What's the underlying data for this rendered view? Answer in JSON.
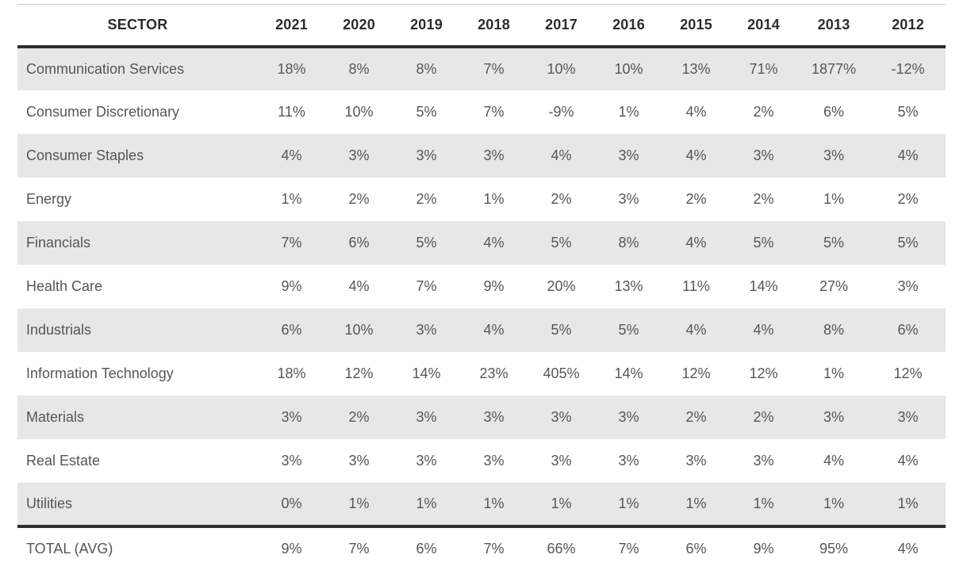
{
  "table": {
    "header": {
      "sector": "SECTOR",
      "years": [
        "2021",
        "2020",
        "2019",
        "2018",
        "2017",
        "2016",
        "2015",
        "2014",
        "2013",
        "2012"
      ]
    },
    "rows": [
      {
        "sector": "Communication Services",
        "values": [
          "18%",
          "8%",
          "8%",
          "7%",
          "10%",
          "10%",
          "13%",
          "71%",
          "1877%",
          "-12%"
        ]
      },
      {
        "sector": "Consumer Discretionary",
        "values": [
          "11%",
          "10%",
          "5%",
          "7%",
          "-9%",
          "1%",
          "4%",
          "2%",
          "6%",
          "5%"
        ]
      },
      {
        "sector": "Consumer Staples",
        "values": [
          "4%",
          "3%",
          "3%",
          "3%",
          "4%",
          "3%",
          "4%",
          "3%",
          "3%",
          "4%"
        ]
      },
      {
        "sector": "Energy",
        "values": [
          "1%",
          "2%",
          "2%",
          "1%",
          "2%",
          "3%",
          "2%",
          "2%",
          "1%",
          "2%"
        ]
      },
      {
        "sector": "Financials",
        "values": [
          "7%",
          "6%",
          "5%",
          "4%",
          "5%",
          "8%",
          "4%",
          "5%",
          "5%",
          "5%"
        ]
      },
      {
        "sector": "Health Care",
        "values": [
          "9%",
          "4%",
          "7%",
          "9%",
          "20%",
          "13%",
          "11%",
          "14%",
          "27%",
          "3%"
        ]
      },
      {
        "sector": "Industrials",
        "values": [
          "6%",
          "10%",
          "3%",
          "4%",
          "5%",
          "5%",
          "4%",
          "4%",
          "8%",
          "6%"
        ]
      },
      {
        "sector": "Information Technology",
        "values": [
          "18%",
          "12%",
          "14%",
          "23%",
          "405%",
          "14%",
          "12%",
          "12%",
          "1%",
          "12%"
        ]
      },
      {
        "sector": "Materials",
        "values": [
          "3%",
          "2%",
          "3%",
          "3%",
          "3%",
          "3%",
          "2%",
          "2%",
          "3%",
          "3%"
        ]
      },
      {
        "sector": "Real Estate",
        "values": [
          "3%",
          "3%",
          "3%",
          "3%",
          "3%",
          "3%",
          "3%",
          "3%",
          "4%",
          "4%"
        ]
      },
      {
        "sector": "Utilities",
        "values": [
          "0%",
          "1%",
          "1%",
          "1%",
          "1%",
          "1%",
          "1%",
          "1%",
          "1%",
          "1%"
        ]
      }
    ],
    "total": {
      "sector": "TOTAL (AVG)",
      "values": [
        "9%",
        "7%",
        "6%",
        "7%",
        "66%",
        "7%",
        "6%",
        "9%",
        "95%",
        "4%"
      ]
    }
  },
  "colors": {
    "page_background": "#ffffff",
    "row_stripe": "#e7e7e7",
    "top_rule": "#c9c9c9",
    "thick_rule": "#2d2e30",
    "header_text": "#2b2c30",
    "body_text": "#55565a"
  },
  "chart_data": {
    "type": "table",
    "title": "Sector annual values (%) by year",
    "units": "percent",
    "columns": [
      "SECTOR",
      "2021",
      "2020",
      "2019",
      "2018",
      "2017",
      "2016",
      "2015",
      "2014",
      "2013",
      "2012"
    ],
    "rows": [
      [
        "Communication Services",
        18,
        8,
        8,
        7,
        10,
        10,
        13,
        71,
        1877,
        -12
      ],
      [
        "Consumer Discretionary",
        11,
        10,
        5,
        7,
        -9,
        1,
        4,
        2,
        6,
        5
      ],
      [
        "Consumer Staples",
        4,
        3,
        3,
        3,
        4,
        3,
        4,
        3,
        3,
        4
      ],
      [
        "Energy",
        1,
        2,
        2,
        1,
        2,
        3,
        2,
        2,
        1,
        2
      ],
      [
        "Financials",
        7,
        6,
        5,
        4,
        5,
        8,
        4,
        5,
        5,
        5
      ],
      [
        "Health Care",
        9,
        4,
        7,
        9,
        20,
        13,
        11,
        14,
        27,
        3
      ],
      [
        "Industrials",
        6,
        10,
        3,
        4,
        5,
        5,
        4,
        4,
        8,
        6
      ],
      [
        "Information Technology",
        18,
        12,
        14,
        23,
        405,
        14,
        12,
        12,
        1,
        12
      ],
      [
        "Materials",
        3,
        2,
        3,
        3,
        3,
        3,
        2,
        2,
        3,
        3
      ],
      [
        "Real Estate",
        3,
        3,
        3,
        3,
        3,
        3,
        3,
        3,
        4,
        4
      ],
      [
        "Utilities",
        0,
        1,
        1,
        1,
        1,
        1,
        1,
        1,
        1,
        1
      ]
    ],
    "total_row": [
      "TOTAL (AVG)",
      9,
      7,
      6,
      7,
      66,
      7,
      6,
      9,
      95,
      4
    ]
  }
}
